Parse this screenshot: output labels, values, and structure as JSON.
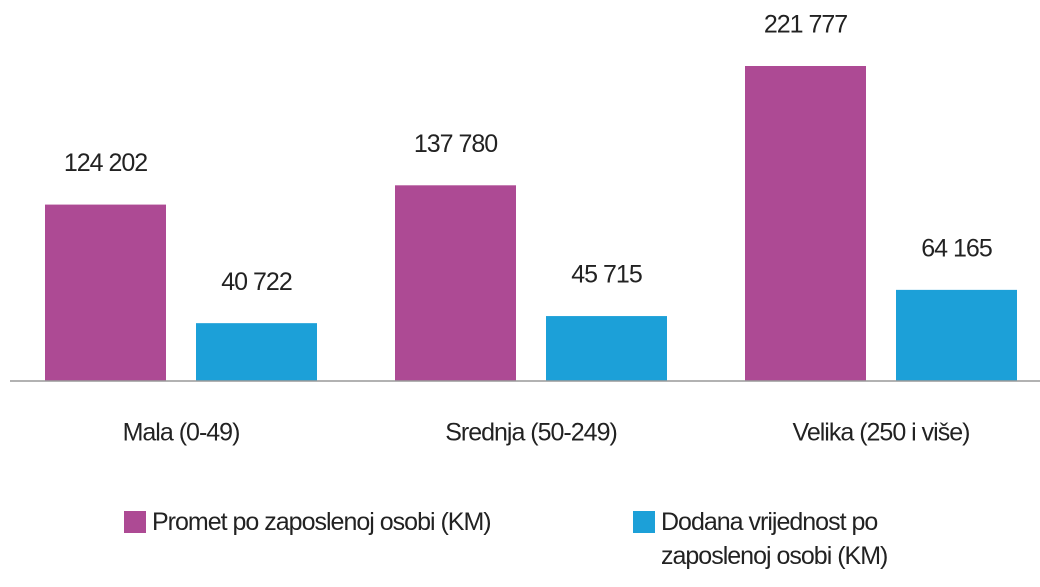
{
  "chart_data": {
    "type": "bar",
    "categories": [
      "Mala (0-49)",
      "Srednja (50-249)",
      "Velika (250 i više)"
    ],
    "series": [
      {
        "name": "Promet po zaposlenoj osobi (KM)",
        "color": "#ad4a94",
        "values": [
          124202,
          137780,
          221777
        ],
        "value_labels": [
          "124 202",
          "137 780",
          "221 777"
        ]
      },
      {
        "name": "Dodana vrijednost po zaposlenoj osobi (KM)",
        "color": "#1ca0d8",
        "values": [
          40722,
          45715,
          64165
        ],
        "value_labels": [
          "40 722",
          "45 715",
          "64 165"
        ]
      }
    ]
  }
}
